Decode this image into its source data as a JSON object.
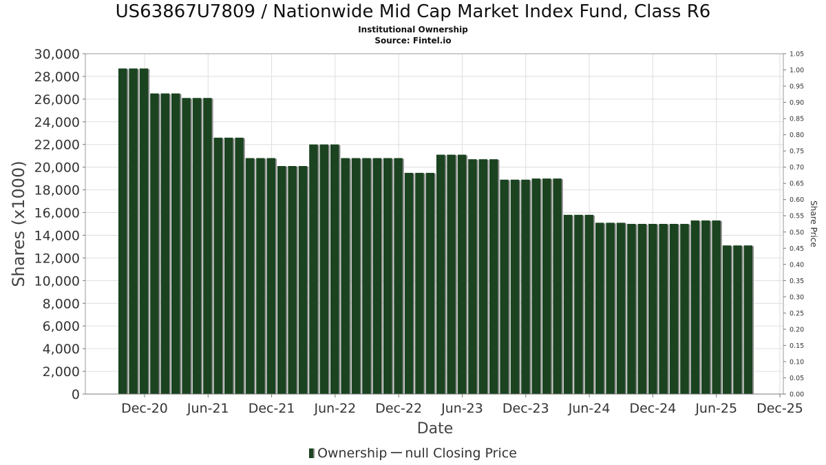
{
  "header": {
    "title": "US63867U7809 / Nationwide Mid Cap Market Index Fund, Class R6",
    "subtitle": "Institutional Ownership",
    "source": "Source: Fintel.io"
  },
  "legend": {
    "ownership": "Ownership",
    "price": "null Closing Price"
  },
  "chart_data": {
    "type": "bar",
    "xlabel": "Date",
    "ylabel": "Shares (x1000)",
    "y2label": "Share Price",
    "ylim": [
      0,
      30000
    ],
    "y2lim": [
      0,
      1.05
    ],
    "grid": true,
    "legend_position": "bottom",
    "colors": {
      "bar": "#1b4320",
      "bar_shadow": "#8a8a8a",
      "grid": "#dddddd"
    },
    "x_ticks": [
      "Dec-20",
      "Jun-21",
      "Dec-21",
      "Jun-22",
      "Dec-22",
      "Jun-23",
      "Dec-23",
      "Jun-24",
      "Dec-24",
      "Jun-25",
      "Dec-25"
    ],
    "y_ticks": [
      "0",
      "2,000",
      "4,000",
      "6,000",
      "8,000",
      "10,000",
      "12,000",
      "14,000",
      "16,000",
      "18,000",
      "20,000",
      "22,000",
      "24,000",
      "26,000",
      "28,000",
      "30,000"
    ],
    "y2_ticks": [
      "0.00",
      "0.05",
      "0.10",
      "0.15",
      "0.20",
      "0.25",
      "0.30",
      "0.35",
      "0.40",
      "0.45",
      "0.50",
      "0.55",
      "0.60",
      "0.65",
      "0.70",
      "0.75",
      "0.80",
      "0.85",
      "0.90",
      "0.95",
      "1.00",
      "1.05"
    ],
    "series": [
      {
        "name": "Ownership",
        "values": [
          28700,
          28700,
          28700,
          26500,
          26500,
          26500,
          26100,
          26100,
          26100,
          22600,
          22600,
          22600,
          20800,
          20800,
          20800,
          20100,
          20100,
          20100,
          22000,
          22000,
          22000,
          20800,
          20800,
          20800,
          20800,
          20800,
          20800,
          19500,
          19500,
          19500,
          21100,
          21100,
          21100,
          20700,
          20700,
          20700,
          18900,
          18900,
          18900,
          19000,
          19000,
          19000,
          15800,
          15800,
          15800,
          15100,
          15100,
          15100,
          15000,
          15000,
          15000,
          15000,
          15000,
          15000,
          15300,
          15300,
          15300,
          13100,
          13100,
          13100
        ]
      }
    ]
  }
}
